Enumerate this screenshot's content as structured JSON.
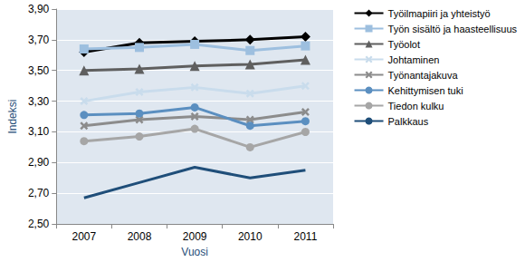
{
  "chart_data": {
    "type": "line",
    "x_label": "Vuosi",
    "y_label": "Indeksi",
    "categories": [
      "2007",
      "2008",
      "2009",
      "2010",
      "2011"
    ],
    "series": [
      {
        "name": "Työilmapiiri ja yhteistyö",
        "color": "#000000",
        "marker": "diamond",
        "values": [
          3.62,
          3.68,
          3.69,
          3.7,
          3.72
        ]
      },
      {
        "name": "Työn sisältö ja haasteellisuus",
        "color": "#9dbfdf",
        "marker": "square",
        "values": [
          3.64,
          3.65,
          3.67,
          3.63,
          3.66
        ]
      },
      {
        "name": "Työolot",
        "color": "#5f5f5f",
        "marker": "triangle",
        "values": [
          3.5,
          3.51,
          3.53,
          3.54,
          3.57
        ]
      },
      {
        "name": "Johtaminen",
        "color": "#c9dcec",
        "marker": "x",
        "values": [
          3.3,
          3.36,
          3.39,
          3.35,
          3.4
        ]
      },
      {
        "name": "Työnantajakuva",
        "color": "#8c8c8c",
        "marker": "x",
        "values": [
          3.14,
          3.18,
          3.2,
          3.18,
          3.23
        ]
      },
      {
        "name": "Kehittymisen tuki",
        "color": "#5b8fc0",
        "marker": "circle",
        "values": [
          3.21,
          3.22,
          3.26,
          3.14,
          3.17
        ]
      },
      {
        "name": "Tiedon kulku",
        "color": "#a6a6a6",
        "marker": "circle",
        "values": [
          3.04,
          3.07,
          3.12,
          3.0,
          3.1
        ]
      },
      {
        "name": "Palkkaus",
        "color": "#1f4e79",
        "marker": "none",
        "values": [
          2.67,
          2.77,
          2.87,
          2.8,
          2.85
        ]
      }
    ],
    "ylim": [
      2.5,
      3.9
    ],
    "yticks": [
      {
        "value": 2.5,
        "label": "2,50"
      },
      {
        "value": 2.7,
        "label": "2,70"
      },
      {
        "value": 2.9,
        "label": "2,90"
      },
      {
        "value": 3.1,
        "label": "3,10"
      },
      {
        "value": 3.3,
        "label": "3,30"
      },
      {
        "value": 3.5,
        "label": "3,50"
      },
      {
        "value": 3.7,
        "label": "3,70"
      },
      {
        "value": 3.9,
        "label": "3,90"
      }
    ],
    "grid": true,
    "legend": "right"
  }
}
